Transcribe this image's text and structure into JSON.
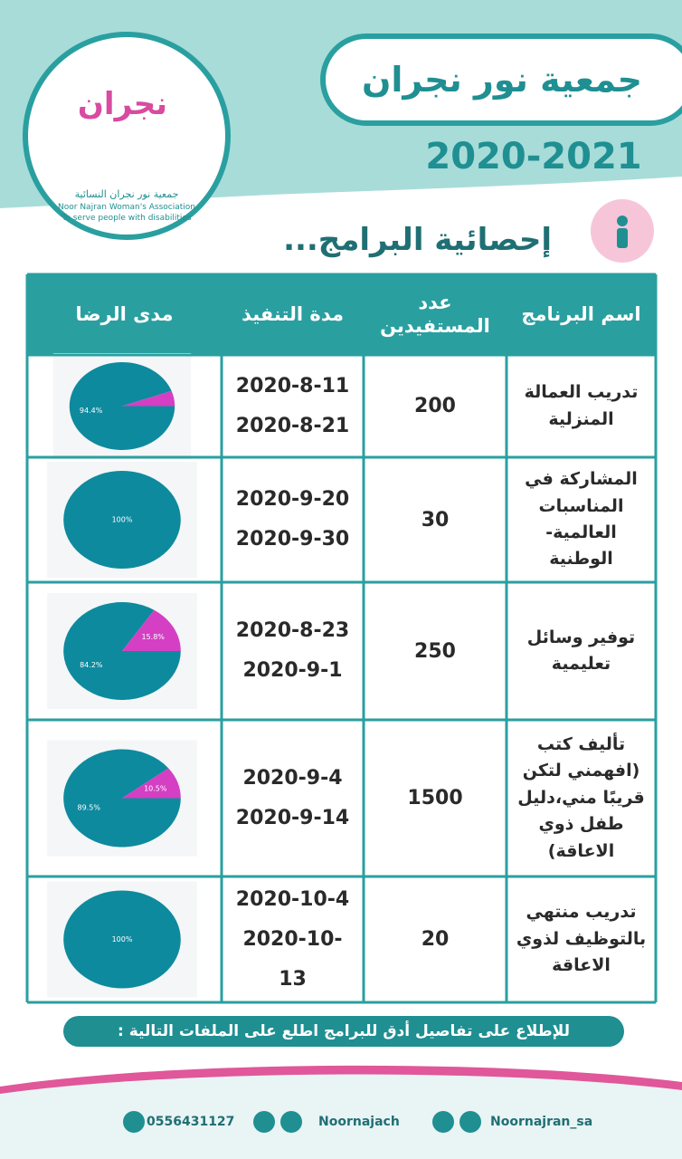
{
  "header": {
    "title": "جمعية نور نجران",
    "years": "2020-2021",
    "logo": {
      "mark": "نجران",
      "lines": [
        "جمعية نور نجران النسائية",
        "Noor Najran Woman's Association",
        "To serve people with disabilities"
      ]
    }
  },
  "section_title": "إحصائية البرامج...",
  "table": {
    "columns": [
      "اسم البرنامج",
      "عدد المستفيدين",
      "مدة التنفيذ",
      "مدى الرضا"
    ],
    "rows": [
      {
        "program": "تدريب العمالة المنزلية",
        "beneficiaries": 200,
        "start": "2020-8-11",
        "end": "2020-8-21",
        "satisfaction": {
          "type": "pie",
          "values": [
            94.4,
            5.6
          ],
          "value_labels": [
            "94.4%",
            null
          ],
          "colors": [
            "#0e8a9e",
            "#d43fc4"
          ]
        }
      },
      {
        "program": "المشاركة في المناسبات العالمية-الوطنية",
        "beneficiaries": 30,
        "start": "2020-9-20",
        "end": "2020-9-30",
        "satisfaction": {
          "type": "pie",
          "values": [
            100
          ],
          "value_labels": [
            "100%"
          ],
          "colors": [
            "#0e8a9e"
          ]
        }
      },
      {
        "program": "توفير وسائل تعليمية",
        "beneficiaries": 250,
        "start": "2020-8-23",
        "end": "2020-9-1",
        "satisfaction": {
          "type": "pie",
          "values": [
            84.2,
            15.8
          ],
          "value_labels": [
            "84.2%",
            "15.8%"
          ],
          "colors": [
            "#0e8a9e",
            "#d43fc4"
          ]
        }
      },
      {
        "program": "تأليف كتب (افهمني لتكن قريبًا مني،دليل طفل ذوي الاعاقة)",
        "beneficiaries": 1500,
        "start": "2020-9-4",
        "end": "2020-9-14",
        "satisfaction": {
          "type": "pie",
          "values": [
            89.5,
            10.5
          ],
          "value_labels": [
            "89.5%",
            "10.5%"
          ],
          "colors": [
            "#0e8a9e",
            "#d43fc4"
          ]
        }
      },
      {
        "program": "تدريب منتهي بالتوظيف لذوي الاعاقة",
        "beneficiaries": 20,
        "start": "2020-10-4",
        "end": "2020-10-13",
        "satisfaction": {
          "type": "pie",
          "values": [
            100
          ],
          "value_labels": [
            "100%"
          ],
          "colors": [
            "#0e8a9e"
          ]
        }
      }
    ]
  },
  "footer": {
    "note": "للإطلاع على تفاصيل أدق للبرامج اطلع على الملفات التالية :",
    "contacts": [
      "0556431127",
      "Noornajach",
      "Noornajran_sa"
    ]
  }
}
